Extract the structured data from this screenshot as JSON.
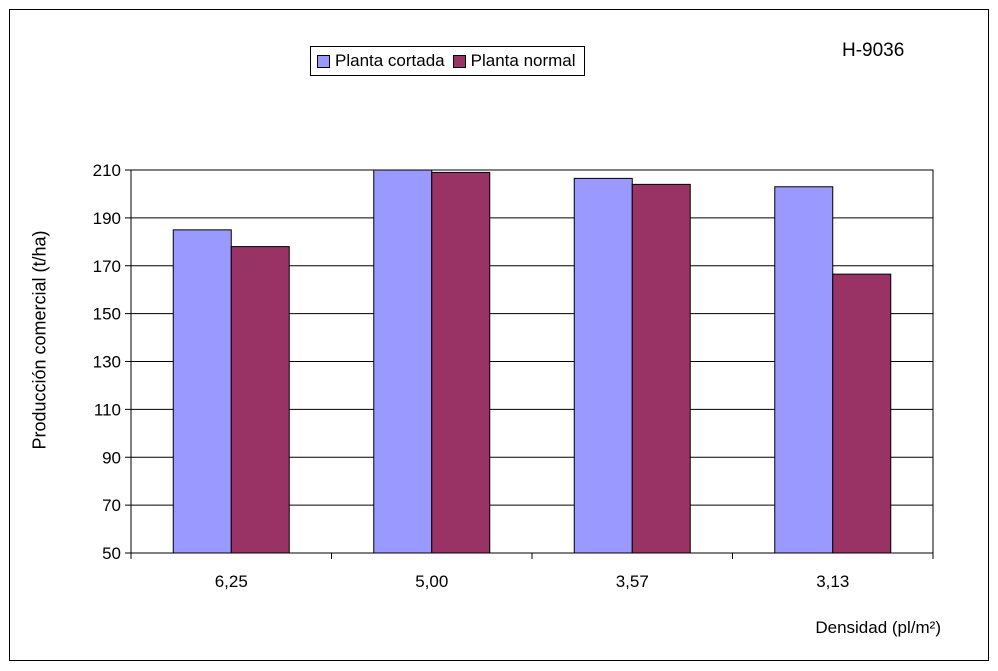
{
  "chart_data": {
    "type": "bar",
    "tag": "H-9036",
    "categories": [
      "6,25",
      "5,00",
      "3,57",
      "3,13"
    ],
    "series": [
      {
        "name": "Planta cortada",
        "color": "#9999ff",
        "values": [
          185,
          210,
          206.5,
          203
        ]
      },
      {
        "name": "Planta normal",
        "color": "#993366",
        "values": [
          178,
          209,
          204,
          166.5
        ]
      }
    ],
    "xlabel": "Densidad (pl/m²)",
    "ylabel": "Producción comercial (t/ha)",
    "ylim": [
      50,
      210
    ],
    "yticks": [
      50,
      70,
      90,
      110,
      130,
      150,
      170,
      190,
      210
    ],
    "grid": true,
    "legend_position": "top-center"
  }
}
